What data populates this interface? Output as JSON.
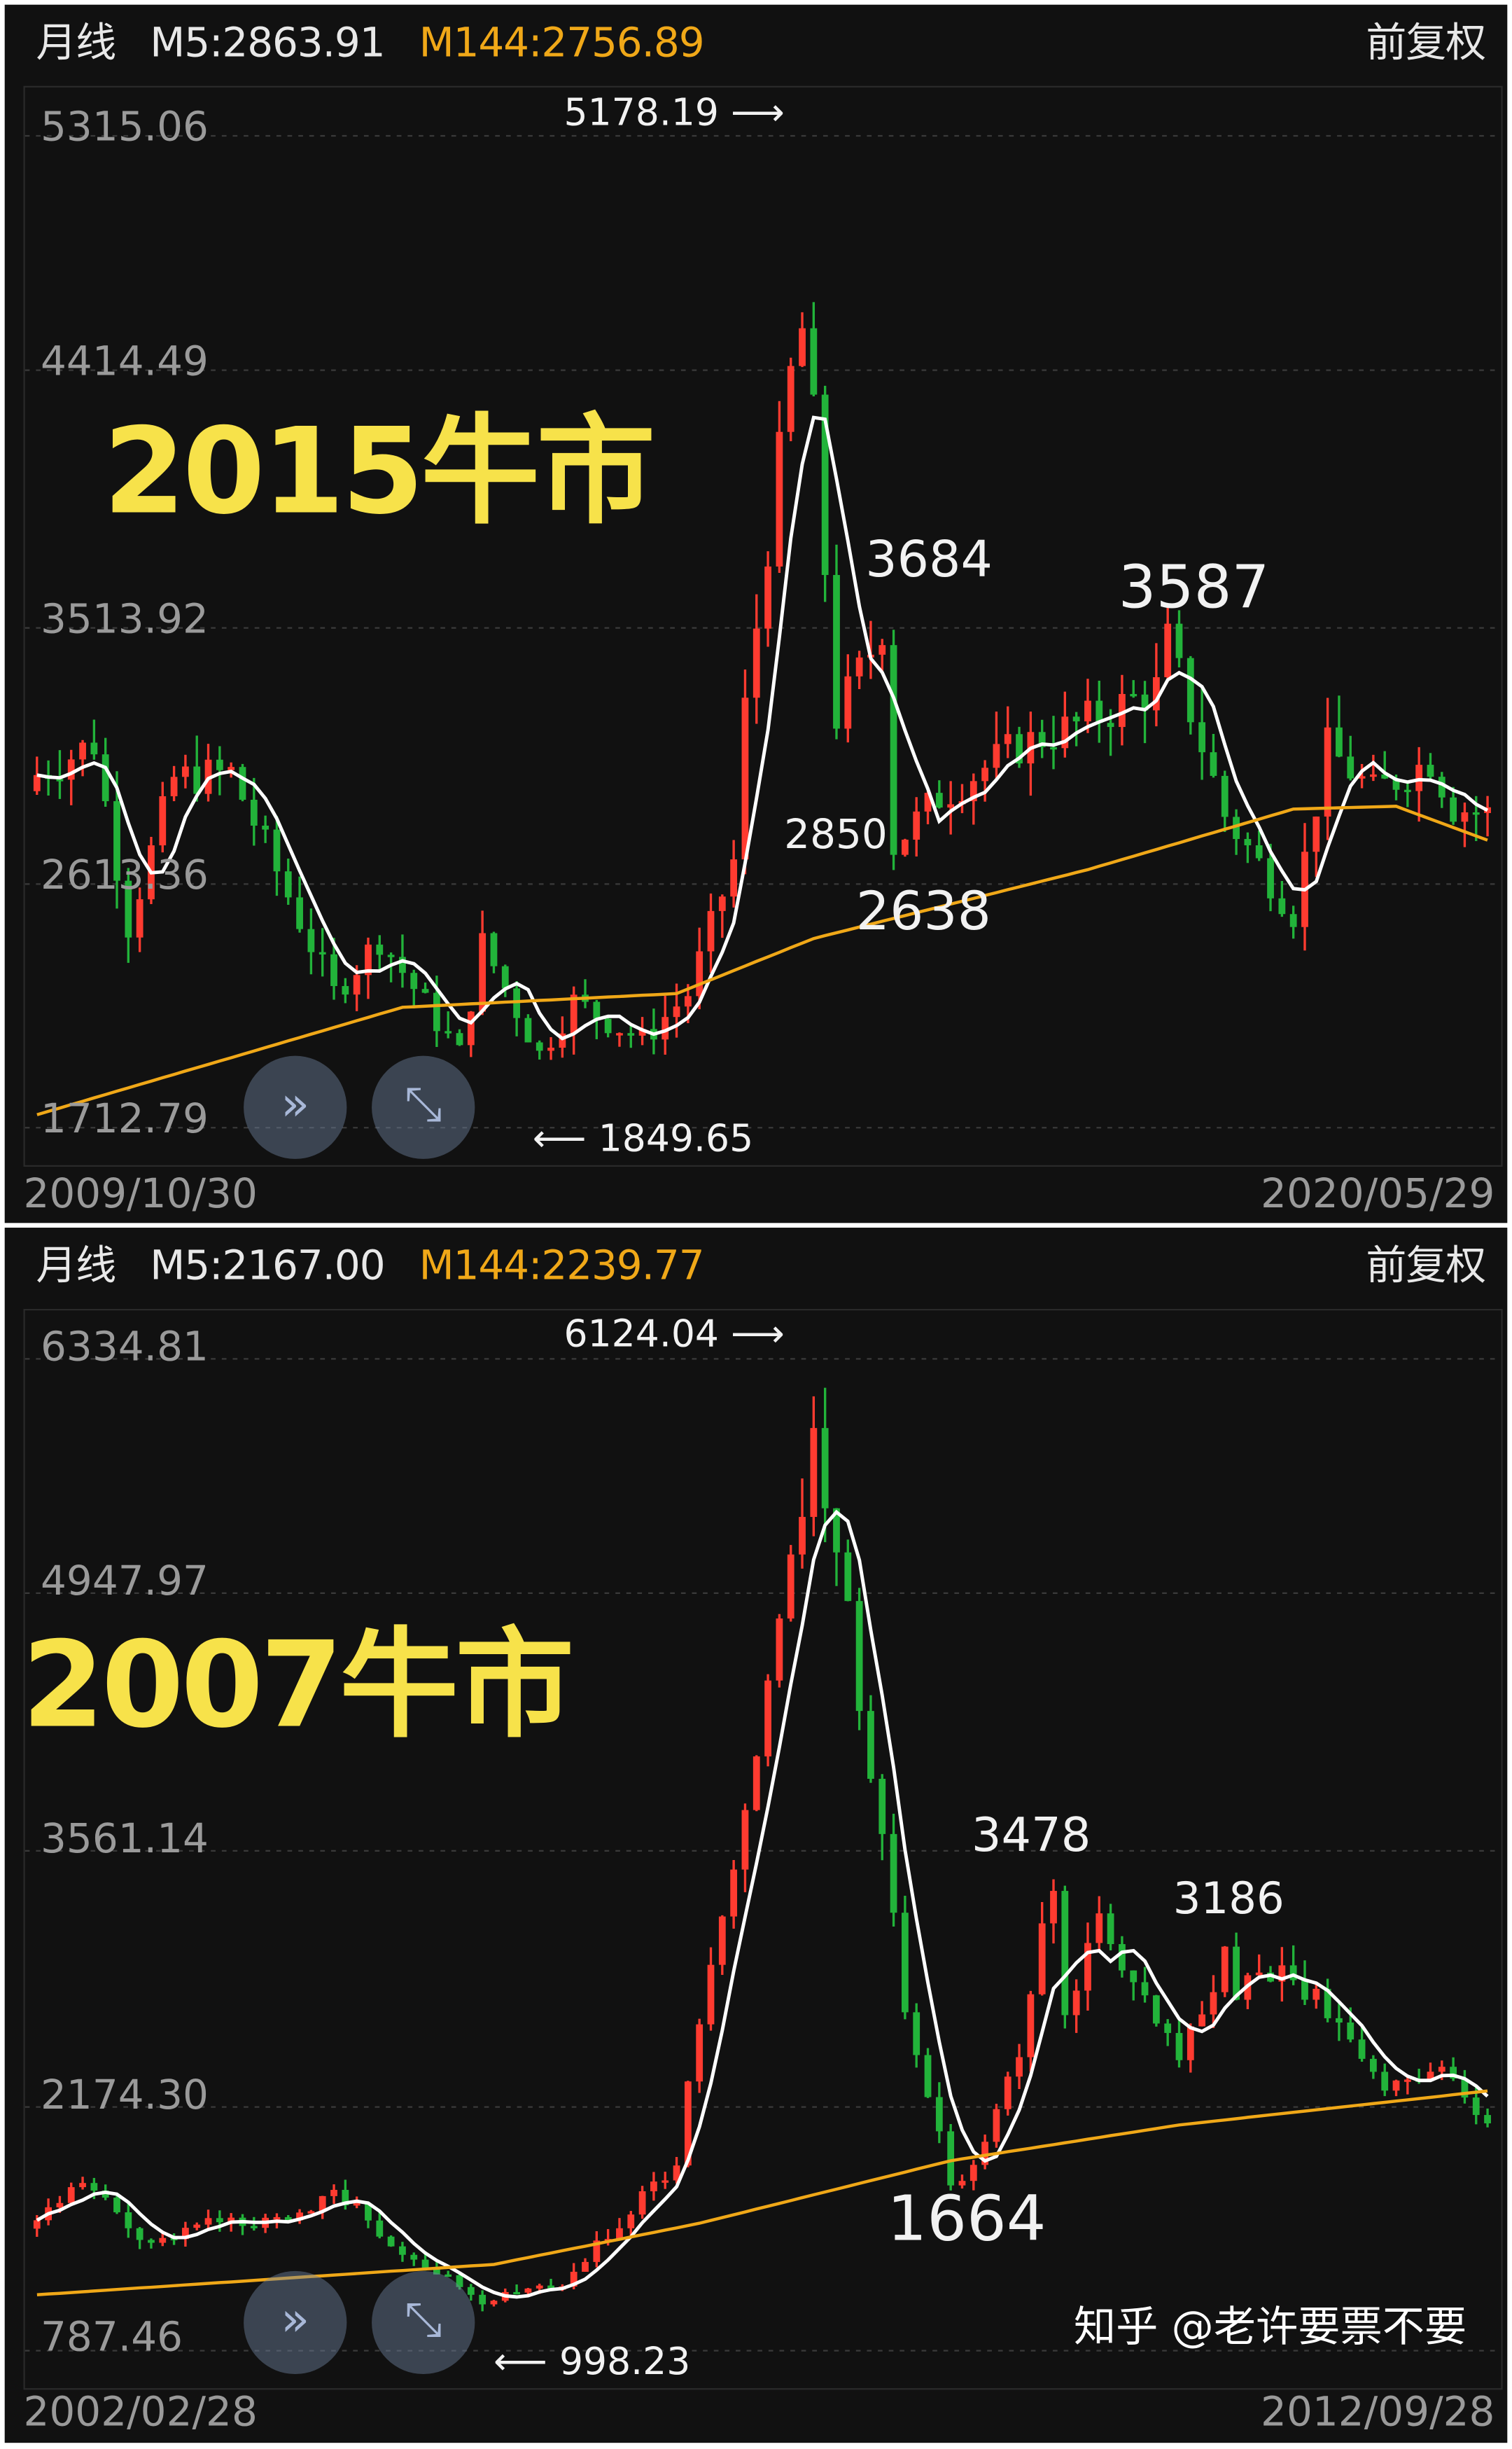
{
  "panels": [
    {
      "period": "月线",
      "m5": "M5:2863.91",
      "m144": "M144:2756.89",
      "adjust": "前复权",
      "start_date": "2009/10/30",
      "end_date": "2020/05/29",
      "label": "2015牛市",
      "high_label": "5178.19",
      "low_label": "1849.65",
      "annotations": [
        "3684",
        "3587",
        "2850",
        "2638"
      ]
    },
    {
      "period": "月线",
      "m5": "M5:2167.00",
      "m144": "M144:2239.77",
      "adjust": "前复权",
      "start_date": "2002/02/28",
      "end_date": "2012/09/28",
      "label": "2007牛市",
      "high_label": "6124.04",
      "low_label": "998.23",
      "annotations": [
        "3478",
        "3186",
        "1664"
      ]
    }
  ],
  "watermark": "知乎 @老许要票不要",
  "icons": {
    "collapse": "double-chevron-icon",
    "expand": "expand-arrows-icon"
  },
  "colors": {
    "up": "#ff3b30",
    "down": "#22b33a",
    "m5": "#ffffff",
    "m144": "#f0a818",
    "label": "#f7e24a",
    "background": "#111111"
  },
  "chart_data": [
    {
      "type": "candlestick",
      "interval": "monthly",
      "x_range": [
        "2009-10",
        "2020-05"
      ],
      "y_ticks": [
        "5315.06",
        "4414.49",
        "3513.92",
        "2613.36",
        "1712.79"
      ],
      "ylim": [
        1712.79,
        5315.06
      ],
      "grid": true,
      "close_anchors": [
        [
          "2009-10",
          2995
        ],
        [
          "2010-03",
          3110
        ],
        [
          "2010-06",
          2450
        ],
        [
          "2010-10",
          2980
        ],
        [
          "2011-03",
          3000
        ],
        [
          "2011-12",
          2200
        ],
        [
          "2012-04",
          2400
        ],
        [
          "2012-11",
          1980
        ],
        [
          "2013-01",
          2380
        ],
        [
          "2013-06",
          1980
        ],
        [
          "2013-09",
          2170
        ],
        [
          "2014-03",
          2030
        ],
        [
          "2014-07",
          2200
        ],
        [
          "2014-11",
          2680
        ],
        [
          "2014-12",
          3234
        ],
        [
          "2015-04",
          4440
        ],
        [
          "2015-05",
          4610
        ],
        [
          "2015-06",
          4277
        ],
        [
          "2015-08",
          3205
        ],
        [
          "2015-11",
          3445
        ],
        [
          "2015-12",
          3539
        ],
        [
          "2016-01",
          2738
        ],
        [
          "2016-05",
          2916
        ],
        [
          "2016-12",
          3100
        ],
        [
          "2017-06",
          3190
        ],
        [
          "2017-12",
          3307
        ],
        [
          "2018-01",
          3480
        ],
        [
          "2018-06",
          2847
        ],
        [
          "2018-12",
          2493
        ],
        [
          "2019-03",
          3090
        ],
        [
          "2019-07",
          2930
        ],
        [
          "2019-12",
          3050
        ],
        [
          "2020-02",
          2880
        ],
        [
          "2020-05",
          2852
        ]
      ],
      "m144_anchors": [
        [
          "2009-10",
          1760
        ],
        [
          "2012-06",
          2150
        ],
        [
          "2014-06",
          2200
        ],
        [
          "2015-06",
          2400
        ],
        [
          "2017-06",
          2650
        ],
        [
          "2018-12",
          2870
        ],
        [
          "2019-09",
          2880
        ],
        [
          "2020-05",
          2757
        ]
      ],
      "marked_high": 5178.19,
      "marked_low": 1849.65
    },
    {
      "type": "candlestick",
      "interval": "monthly",
      "x_range": [
        "2002-02",
        "2012-09"
      ],
      "y_ticks": [
        "6334.81",
        "4947.97",
        "3561.14",
        "2174.30",
        "787.46"
      ],
      "ylim": [
        787.46,
        6334.81
      ],
      "grid": true,
      "close_anchors": [
        [
          "2002-02",
          1500
        ],
        [
          "2002-06",
          1730
        ],
        [
          "2002-12",
          1360
        ],
        [
          "2003-04",
          1520
        ],
        [
          "2003-12",
          1500
        ],
        [
          "2004-04",
          1690
        ],
        [
          "2004-09",
          1400
        ],
        [
          "2005-05",
          1060
        ],
        [
          "2005-06",
          1080
        ],
        [
          "2005-12",
          1160
        ],
        [
          "2006-04",
          1440
        ],
        [
          "2006-10",
          1840
        ],
        [
          "2006-12",
          2675
        ],
        [
          "2007-05",
          4110
        ],
        [
          "2007-09",
          5550
        ],
        [
          "2007-10",
          5955
        ],
        [
          "2007-12",
          5260
        ],
        [
          "2008-04",
          3690
        ],
        [
          "2008-06",
          2740
        ],
        [
          "2008-10",
          1729
        ],
        [
          "2008-12",
          1820
        ],
        [
          "2009-04",
          2480
        ],
        [
          "2009-07",
          3410
        ],
        [
          "2009-08",
          2670
        ],
        [
          "2009-11",
          3200
        ],
        [
          "2010-06",
          2400
        ],
        [
          "2010-10",
          2980
        ],
        [
          "2010-11",
          2820
        ],
        [
          "2011-03",
          2930
        ],
        [
          "2011-06",
          2760
        ],
        [
          "2011-12",
          2200
        ],
        [
          "2012-04",
          2400
        ],
        [
          "2012-09",
          2086
        ]
      ],
      "m144_anchors": [
        [
          "2002-02",
          1100
        ],
        [
          "2005-06",
          1270
        ],
        [
          "2006-12",
          1500
        ],
        [
          "2008-10",
          1850
        ],
        [
          "2010-06",
          2050
        ],
        [
          "2012-09",
          2240
        ]
      ],
      "marked_high": 6124.04,
      "marked_low": 998.23
    }
  ]
}
